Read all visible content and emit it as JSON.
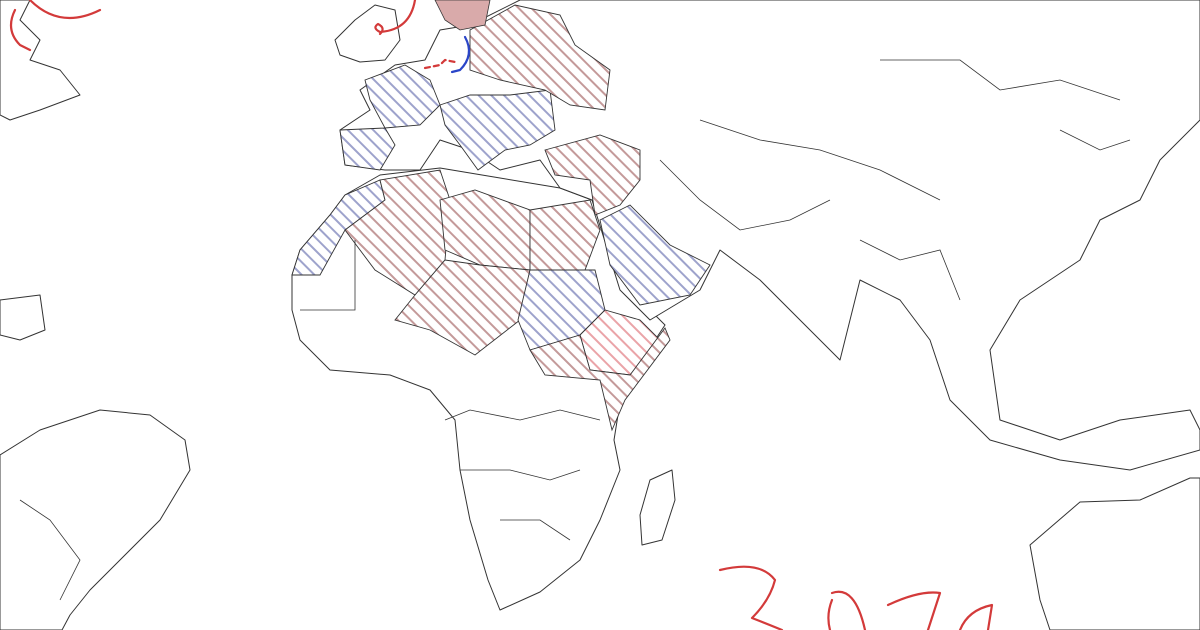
{
  "map": {
    "background": "#ffffff",
    "outline_color": "#333333",
    "hatch_colors": {
      "red": "#c49a9a",
      "blue": "#9ea3cc",
      "light_red": "#eaa4a8",
      "solid_red": "#d9aaaa"
    },
    "ink_colors": {
      "red": "#d33a3a",
      "blue": "#2a45c8"
    },
    "regions": [
      {
        "id": "spain",
        "hatch": "blue"
      },
      {
        "id": "france",
        "hatch": "blue"
      },
      {
        "id": "italy-balkans",
        "hatch": "blue"
      },
      {
        "id": "morocco-western-sahara",
        "hatch": "blue"
      },
      {
        "id": "algeria",
        "hatch": "red"
      },
      {
        "id": "libya",
        "hatch": "red"
      },
      {
        "id": "egypt",
        "hatch": "red"
      },
      {
        "id": "niger-chad",
        "hatch": "red"
      },
      {
        "id": "sudan",
        "hatch": "blue"
      },
      {
        "id": "saudi-arabia",
        "hatch": "blue"
      },
      {
        "id": "ethiopia",
        "hatch": "light_red"
      },
      {
        "id": "south-sudan-somalia",
        "hatch": "red"
      },
      {
        "id": "turkey-levant",
        "hatch": "red"
      },
      {
        "id": "eastern-europe",
        "hatch": "red"
      },
      {
        "id": "scandinavia",
        "hatch": "solid_red"
      }
    ]
  }
}
